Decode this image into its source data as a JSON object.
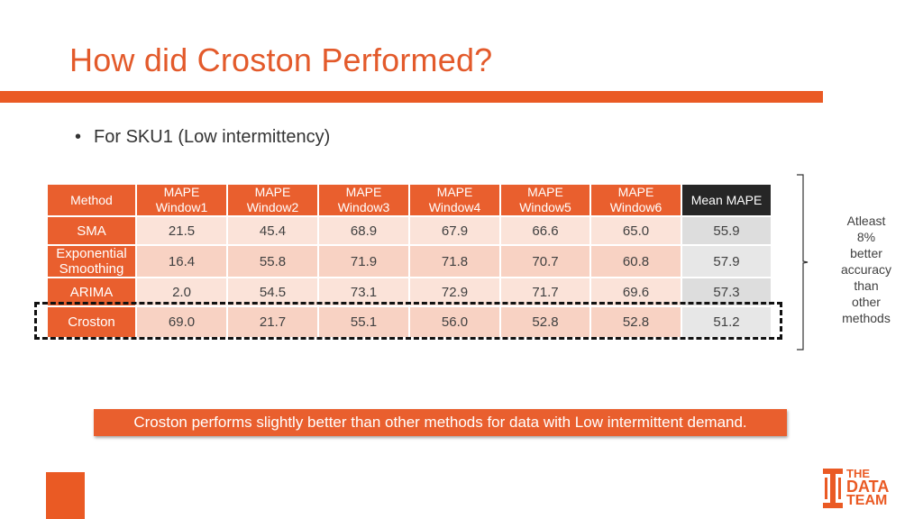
{
  "slide": {
    "title": "How did Croston Performed?",
    "bullet": "For SKU1 (Low intermittency)",
    "conclusion": "Croston performs slightly better than other methods for data with Low intermittent demand."
  },
  "table": {
    "headers": {
      "method": "Method",
      "w1": [
        "MAPE",
        "Window1"
      ],
      "w2": [
        "MAPE",
        "Window2"
      ],
      "w3": [
        "MAPE",
        "Window3"
      ],
      "w4": [
        "MAPE",
        "Window4"
      ],
      "w5": [
        "MAPE",
        "Window5"
      ],
      "w6": [
        "MAPE",
        "Window6"
      ],
      "mean": "Mean MAPE"
    },
    "rows": [
      {
        "method": [
          "SMA"
        ],
        "values": [
          "21.5",
          "45.4",
          "68.9",
          "67.9",
          "66.6",
          "65.0"
        ],
        "mean": "55.9"
      },
      {
        "method": [
          "Exponential",
          "Smoothing"
        ],
        "values": [
          "16.4",
          "55.8",
          "71.9",
          "71.8",
          "70.7",
          "60.8"
        ],
        "mean": "57.9"
      },
      {
        "method": [
          "ARIMA"
        ],
        "values": [
          "2.0",
          "54.5",
          "73.1",
          "72.9",
          "71.7",
          "69.6"
        ],
        "mean": "57.3"
      },
      {
        "method": [
          "Croston"
        ],
        "values": [
          "69.0",
          "21.7",
          "55.1",
          "56.0",
          "52.8",
          "52.8"
        ],
        "mean": "51.2"
      }
    ]
  },
  "note": {
    "lines": [
      "Atleast",
      "8%",
      "better",
      "accuracy",
      "than",
      "other",
      "methods"
    ]
  },
  "logo": {
    "line1": "THE",
    "line2": "DATA",
    "line3": "TEAM"
  },
  "colors": {
    "accent": "#ea5a24",
    "header_dark": "#262626"
  }
}
